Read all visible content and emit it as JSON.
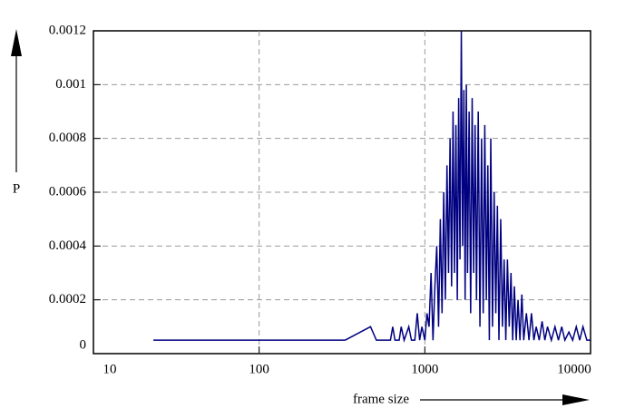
{
  "chart_data": {
    "type": "line",
    "xlabel": "frame size",
    "ylabel": "P",
    "x": [
      23,
      330,
      470,
      510,
      620,
      640,
      660,
      700,
      720,
      750,
      800,
      830,
      870,
      900,
      930,
      960,
      1000,
      1030,
      1060,
      1090,
      1120,
      1150,
      1180,
      1210,
      1240,
      1270,
      1300,
      1330,
      1360,
      1390,
      1420,
      1450,
      1480,
      1510,
      1540,
      1570,
      1600,
      1630,
      1660,
      1690,
      1720,
      1750,
      1780,
      1810,
      1850,
      1890,
      1930,
      1970,
      2010,
      2050,
      2100,
      2150,
      2200,
      2250,
      2300,
      2350,
      2400,
      2450,
      2500,
      2560,
      2620,
      2680,
      2740,
      2800,
      2870,
      2940,
      3010,
      3080,
      3150,
      3230,
      3310,
      3390,
      3470,
      3560,
      3650,
      3750,
      3850,
      3950,
      4100,
      4250,
      4400,
      4550,
      4700,
      4900,
      5100,
      5300,
      5500,
      5800,
      6100,
      6400,
      6700,
      7000,
      7400,
      7800,
      8200,
      8600,
      9000,
      9500,
      10000
    ],
    "values": [
      5e-05,
      5e-05,
      0.0001,
      5e-05,
      5e-05,
      0.0001,
      5e-05,
      5e-05,
      0.0001,
      5e-05,
      0.0001,
      5e-05,
      5e-05,
      0.00015,
      5e-05,
      0.0001,
      5e-05,
      0.00015,
      0.0001,
      0.0003,
      5e-05,
      0.00025,
      0.0004,
      0.0001,
      0.0005,
      0.00015,
      0.0006,
      0.0002,
      0.0007,
      0.0003,
      0.0008,
      0.00025,
      0.0009,
      0.0003,
      0.00085,
      0.0002,
      0.00095,
      0.00035,
      0.0012,
      0.0004,
      0.00098,
      0.0002,
      0.001,
      0.0003,
      0.0009,
      0.00015,
      0.00095,
      0.0003,
      0.00085,
      0.0002,
      0.0009,
      0.0001,
      0.0008,
      0.00015,
      0.00085,
      0.0002,
      0.0007,
      5e-05,
      0.0008,
      0.0001,
      0.0006,
      0.00015,
      0.00055,
      5e-05,
      0.0005,
      0.0001,
      0.00035,
      5e-05,
      0.00035,
      0.0001,
      0.0003,
      5e-05,
      0.00025,
      5e-05,
      0.0002,
      5e-05,
      0.00022,
      5e-05,
      0.00015,
      5e-05,
      0.00015,
      5e-05,
      0.0001,
      5e-05,
      0.00012,
      5e-05,
      0.0001,
      5e-05,
      0.0001,
      5e-05,
      0.0001,
      5e-05,
      8e-05,
      5e-05,
      0.0001,
      5e-05,
      0.0001,
      5e-05,
      5e-05
    ],
    "color": "#000080",
    "xscale": "log",
    "xlim": [
      10,
      10000
    ],
    "xticks": [
      10,
      100,
      1000,
      10000
    ],
    "ylim": [
      0,
      0.0012
    ],
    "yticks": [
      0,
      0.0002,
      0.0004,
      0.0006,
      0.0008,
      0.001,
      0.0012
    ],
    "grid": true
  }
}
